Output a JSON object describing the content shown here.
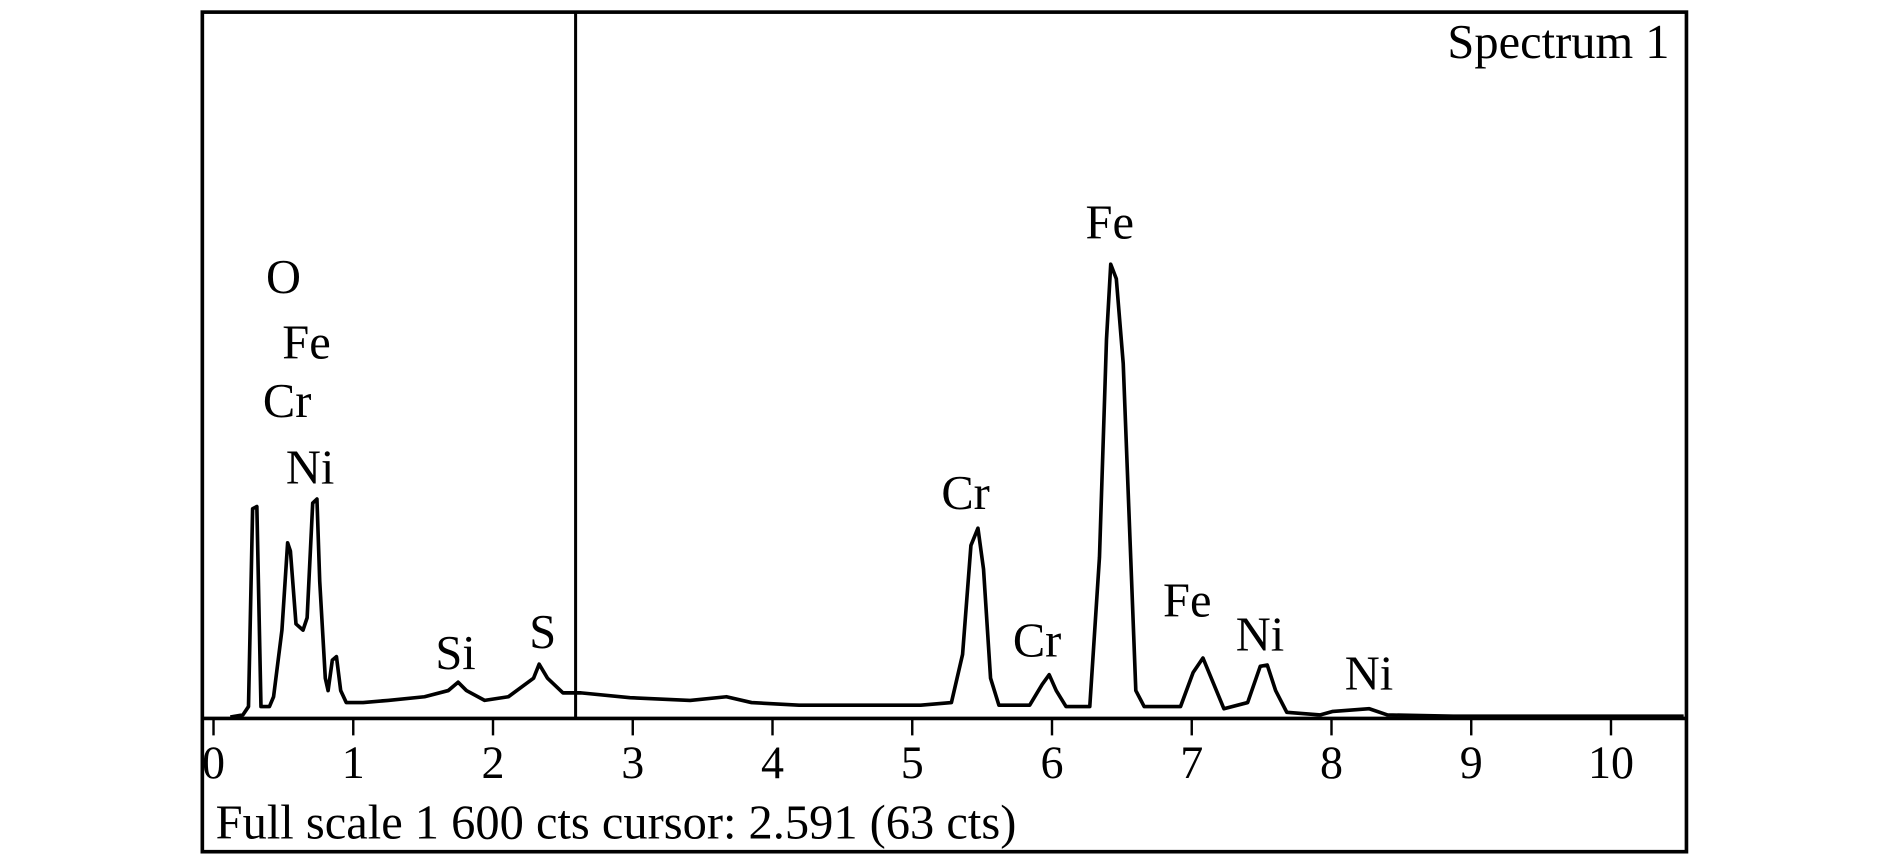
{
  "chart_data": {
    "type": "line",
    "title": "Spectrum 1",
    "footer": "Full scale 1 600 cts cursor: 2.591 (63 cts)",
    "annotations": [
      "O",
      "Fe",
      "Cr",
      "Ni",
      "Si",
      "S",
      "Cr",
      "Cr",
      "Fe",
      "Fe",
      "Ni",
      "Ni"
    ],
    "cursor_x": 2.591,
    "x": [
      0.12,
      0.21,
      0.25,
      0.28,
      0.31,
      0.34,
      0.4,
      0.43,
      0.49,
      0.53,
      0.55,
      0.59,
      0.64,
      0.67,
      0.71,
      0.74,
      0.76,
      0.8,
      0.82,
      0.85,
      0.88,
      0.91,
      0.95,
      1.07,
      1.25,
      1.51,
      1.68,
      1.75,
      1.81,
      1.94,
      2.11,
      2.29,
      2.33,
      2.39,
      2.5,
      2.63,
      2.98,
      3.41,
      3.67,
      3.85,
      4.19,
      4.54,
      5.06,
      5.28,
      5.36,
      5.42,
      5.47,
      5.51,
      5.56,
      5.62,
      5.84,
      5.93,
      5.98,
      6.03,
      6.1,
      6.27,
      6.34,
      6.39,
      6.42,
      6.46,
      6.51,
      6.56,
      6.6,
      6.66,
      6.92,
      7.01,
      7.08,
      7.14,
      7.23,
      7.4,
      7.49,
      7.54,
      7.6,
      7.68,
      7.92,
      8.01,
      8.27,
      8.4,
      8.87,
      9.74,
      10.52
    ],
    "series": [
      {
        "color": "#000000",
        "values": [
          3,
          8,
          27,
          475,
          480,
          27,
          27,
          49,
          200,
          398,
          379,
          214,
          200,
          228,
          488,
          497,
          310,
          91,
          63,
          132,
          140,
          63,
          36,
          36,
          41,
          49,
          63,
          82,
          63,
          41,
          49,
          91,
          123,
          91,
          58,
          58,
          47,
          41,
          49,
          36,
          30,
          30,
          30,
          36,
          145,
          392,
          431,
          338,
          91,
          30,
          30,
          77,
          99,
          63,
          27,
          27,
          365,
          859,
          1029,
          996,
          804,
          392,
          63,
          27,
          27,
          104,
          137,
          91,
          22,
          36,
          118,
          121,
          63,
          14,
          8,
          16,
          22,
          8,
          5,
          5,
          5
        ]
      }
    ],
    "xlim": [
      -0.08,
      10.54
    ],
    "ylim": [
      0,
      1600
    ],
    "xticks": [
      0,
      1,
      2,
      3,
      4,
      5,
      6,
      7,
      8,
      9,
      10
    ]
  }
}
